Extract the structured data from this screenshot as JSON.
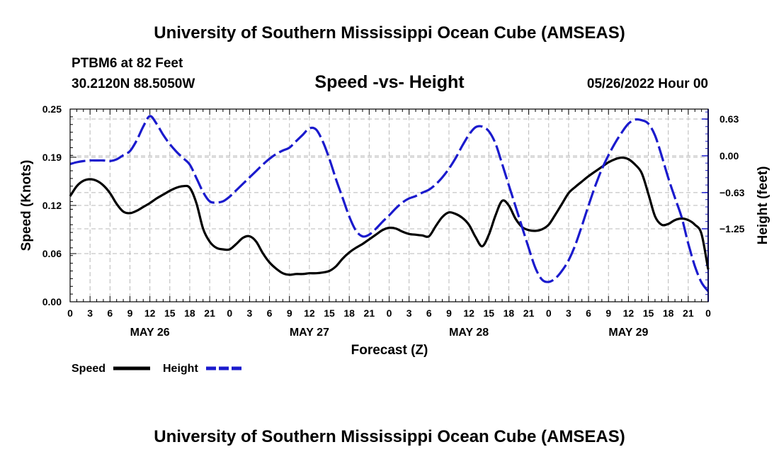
{
  "page": {
    "title_top": "University of Southern Mississippi Ocean Cube (AMSEAS)",
    "title_bottom": "University of Southern Mississippi Ocean Cube (AMSEAS)",
    "station": "PTBM6 at 82 Feet",
    "coords": "30.2120N  88.5050W",
    "chart_title": "Speed -vs- Height",
    "datetime": "05/26/2022 Hour 00"
  },
  "chart_data": {
    "type": "line",
    "title": "Speed -vs- Height",
    "xlabel": "Forecast (Z)",
    "ylabel": "Speed (Knots)",
    "y2label": "Height (feet)",
    "x_range_hours": [
      0,
      96
    ],
    "x_ticks": [
      {
        "h": 0,
        "label": "0"
      },
      {
        "h": 3,
        "label": "3"
      },
      {
        "h": 6,
        "label": "6"
      },
      {
        "h": 9,
        "label": "9"
      },
      {
        "h": 12,
        "label": "12"
      },
      {
        "h": 15,
        "label": "15"
      },
      {
        "h": 18,
        "label": "18"
      },
      {
        "h": 21,
        "label": "21"
      },
      {
        "h": 24,
        "label": "0"
      },
      {
        "h": 27,
        "label": "3"
      },
      {
        "h": 30,
        "label": "6"
      },
      {
        "h": 33,
        "label": "9"
      },
      {
        "h": 36,
        "label": "12"
      },
      {
        "h": 39,
        "label": "15"
      },
      {
        "h": 42,
        "label": "18"
      },
      {
        "h": 45,
        "label": "21"
      },
      {
        "h": 48,
        "label": "0"
      },
      {
        "h": 51,
        "label": "3"
      },
      {
        "h": 54,
        "label": "6"
      },
      {
        "h": 57,
        "label": "9"
      },
      {
        "h": 60,
        "label": "12"
      },
      {
        "h": 63,
        "label": "15"
      },
      {
        "h": 66,
        "label": "18"
      },
      {
        "h": 69,
        "label": "21"
      },
      {
        "h": 72,
        "label": "0"
      },
      {
        "h": 75,
        "label": "3"
      },
      {
        "h": 78,
        "label": "6"
      },
      {
        "h": 81,
        "label": "9"
      },
      {
        "h": 84,
        "label": "12"
      },
      {
        "h": 87,
        "label": "15"
      },
      {
        "h": 90,
        "label": "18"
      },
      {
        "h": 93,
        "label": "21"
      },
      {
        "h": 96,
        "label": "0"
      }
    ],
    "day_labels": [
      {
        "h": 12,
        "label": "MAY 26"
      },
      {
        "h": 36,
        "label": "MAY 27"
      },
      {
        "h": 60,
        "label": "MAY 28"
      },
      {
        "h": 84,
        "label": "MAY 29"
      }
    ],
    "y_left": {
      "min": 0.0,
      "max": 0.25,
      "ticks": [
        {
          "v": 0.0,
          "label": "0.00"
        },
        {
          "v": 0.0625,
          "label": "0.06"
        },
        {
          "v": 0.125,
          "label": "0.12"
        },
        {
          "v": 0.1875,
          "label": "0.19"
        },
        {
          "v": 0.25,
          "label": "0.25"
        }
      ]
    },
    "y_right": {
      "min": -2.5,
      "max": 0.8,
      "ticks": [
        {
          "v": 0.63,
          "label": "0.63"
        },
        {
          "v": 0.0,
          "label": "0.00"
        },
        {
          "v": -0.63,
          "label": "−0.63"
        },
        {
          "v": -1.25,
          "label": "−1.25"
        }
      ]
    },
    "series": [
      {
        "name": "Speed",
        "axis": "left",
        "color": "#000000",
        "style": "solid",
        "points": [
          [
            0,
            0.137
          ],
          [
            1,
            0.15
          ],
          [
            2,
            0.157
          ],
          [
            3,
            0.159
          ],
          [
            4,
            0.157
          ],
          [
            5,
            0.151
          ],
          [
            6,
            0.141
          ],
          [
            7,
            0.127
          ],
          [
            8,
            0.117
          ],
          [
            9,
            0.115
          ],
          [
            10,
            0.118
          ],
          [
            11,
            0.123
          ],
          [
            12,
            0.128
          ],
          [
            13,
            0.134
          ],
          [
            14,
            0.139
          ],
          [
            15,
            0.144
          ],
          [
            16,
            0.148
          ],
          [
            17,
            0.15
          ],
          [
            18,
            0.148
          ],
          [
            19,
            0.128
          ],
          [
            20,
            0.095
          ],
          [
            21,
            0.078
          ],
          [
            22,
            0.07
          ],
          [
            23,
            0.068
          ],
          [
            24,
            0.068
          ],
          [
            25,
            0.075
          ],
          [
            26,
            0.083
          ],
          [
            27,
            0.085
          ],
          [
            28,
            0.078
          ],
          [
            29,
            0.063
          ],
          [
            30,
            0.051
          ],
          [
            31,
            0.043
          ],
          [
            32,
            0.037
          ],
          [
            33,
            0.035
          ],
          [
            34,
            0.036
          ],
          [
            35,
            0.036
          ],
          [
            36,
            0.037
          ],
          [
            37,
            0.037
          ],
          [
            38,
            0.038
          ],
          [
            39,
            0.04
          ],
          [
            40,
            0.046
          ],
          [
            41,
            0.056
          ],
          [
            42,
            0.064
          ],
          [
            43,
            0.07
          ],
          [
            44,
            0.075
          ],
          [
            45,
            0.081
          ],
          [
            46,
            0.087
          ],
          [
            47,
            0.093
          ],
          [
            48,
            0.096
          ],
          [
            49,
            0.095
          ],
          [
            50,
            0.091
          ],
          [
            51,
            0.088
          ],
          [
            52,
            0.087
          ],
          [
            53,
            0.086
          ],
          [
            54,
            0.085
          ],
          [
            55,
            0.098
          ],
          [
            56,
            0.11
          ],
          [
            57,
            0.116
          ],
          [
            58,
            0.114
          ],
          [
            59,
            0.109
          ],
          [
            60,
            0.1
          ],
          [
            61,
            0.084
          ],
          [
            62,
            0.072
          ],
          [
            63,
            0.087
          ],
          [
            64,
            0.112
          ],
          [
            65,
            0.131
          ],
          [
            66,
            0.125
          ],
          [
            67,
            0.108
          ],
          [
            68,
            0.097
          ],
          [
            69,
            0.093
          ],
          [
            70,
            0.092
          ],
          [
            71,
            0.094
          ],
          [
            72,
            0.1
          ],
          [
            73,
            0.113
          ],
          [
            74,
            0.127
          ],
          [
            75,
            0.141
          ],
          [
            76,
            0.149
          ],
          [
            77,
            0.156
          ],
          [
            78,
            0.163
          ],
          [
            79,
            0.169
          ],
          [
            80,
            0.175
          ],
          [
            81,
            0.181
          ],
          [
            82,
            0.185
          ],
          [
            83,
            0.187
          ],
          [
            84,
            0.185
          ],
          [
            85,
            0.178
          ],
          [
            86,
            0.167
          ],
          [
            87,
            0.14
          ],
          [
            88,
            0.111
          ],
          [
            89,
            0.1
          ],
          [
            90,
            0.101
          ],
          [
            91,
            0.106
          ],
          [
            92,
            0.108
          ],
          [
            93,
            0.106
          ],
          [
            94,
            0.1
          ],
          [
            95,
            0.088
          ],
          [
            96,
            0.042
          ]
        ]
      },
      {
        "name": "Height",
        "axis": "right",
        "color": "#1a1acd",
        "style": "dashed",
        "points": [
          [
            0,
            -0.14
          ],
          [
            1,
            -0.11
          ],
          [
            2,
            -0.09
          ],
          [
            3,
            -0.08
          ],
          [
            4,
            -0.08
          ],
          [
            5,
            -0.08
          ],
          [
            6,
            -0.09
          ],
          [
            7,
            -0.06
          ],
          [
            8,
            0.01
          ],
          [
            9,
            0.08
          ],
          [
            10,
            0.26
          ],
          [
            11,
            0.5
          ],
          [
            12,
            0.68
          ],
          [
            13,
            0.55
          ],
          [
            14,
            0.36
          ],
          [
            15,
            0.2
          ],
          [
            16,
            0.07
          ],
          [
            17,
            -0.04
          ],
          [
            18,
            -0.15
          ],
          [
            19,
            -0.38
          ],
          [
            20,
            -0.62
          ],
          [
            21,
            -0.78
          ],
          [
            22,
            -0.8
          ],
          [
            23,
            -0.78
          ],
          [
            24,
            -0.7
          ],
          [
            25,
            -0.59
          ],
          [
            26,
            -0.48
          ],
          [
            27,
            -0.37
          ],
          [
            28,
            -0.26
          ],
          [
            29,
            -0.15
          ],
          [
            30,
            -0.05
          ],
          [
            31,
            0.03
          ],
          [
            32,
            0.09
          ],
          [
            33,
            0.14
          ],
          [
            34,
            0.25
          ],
          [
            35,
            0.36
          ],
          [
            36,
            0.47
          ],
          [
            37,
            0.45
          ],
          [
            38,
            0.25
          ],
          [
            39,
            -0.05
          ],
          [
            40,
            -0.4
          ],
          [
            41,
            -0.72
          ],
          [
            42,
            -1.04
          ],
          [
            43,
            -1.28
          ],
          [
            44,
            -1.38
          ],
          [
            45,
            -1.35
          ],
          [
            46,
            -1.25
          ],
          [
            47,
            -1.13
          ],
          [
            48,
            -1.02
          ],
          [
            49,
            -0.9
          ],
          [
            50,
            -0.8
          ],
          [
            51,
            -0.73
          ],
          [
            52,
            -0.69
          ],
          [
            53,
            -0.63
          ],
          [
            54,
            -0.58
          ],
          [
            55,
            -0.49
          ],
          [
            56,
            -0.37
          ],
          [
            57,
            -0.22
          ],
          [
            58,
            -0.04
          ],
          [
            59,
            0.17
          ],
          [
            60,
            0.36
          ],
          [
            61,
            0.49
          ],
          [
            62,
            0.5
          ],
          [
            63,
            0.42
          ],
          [
            64,
            0.21
          ],
          [
            65,
            -0.14
          ],
          [
            66,
            -0.5
          ],
          [
            67,
            -0.86
          ],
          [
            68,
            -1.22
          ],
          [
            69,
            -1.58
          ],
          [
            70,
            -1.92
          ],
          [
            71,
            -2.12
          ],
          [
            72,
            -2.16
          ],
          [
            73,
            -2.1
          ],
          [
            74,
            -1.97
          ],
          [
            75,
            -1.79
          ],
          [
            76,
            -1.53
          ],
          [
            77,
            -1.2
          ],
          [
            78,
            -0.85
          ],
          [
            79,
            -0.52
          ],
          [
            80,
            -0.23
          ],
          [
            81,
            0.01
          ],
          [
            82,
            0.22
          ],
          [
            83,
            0.4
          ],
          [
            84,
            0.55
          ],
          [
            85,
            0.62
          ],
          [
            86,
            0.61
          ],
          [
            87,
            0.55
          ],
          [
            88,
            0.35
          ],
          [
            89,
            0.0
          ],
          [
            90,
            -0.38
          ],
          [
            91,
            -0.72
          ],
          [
            92,
            -1.05
          ],
          [
            93,
            -1.5
          ],
          [
            94,
            -1.89
          ],
          [
            95,
            -2.17
          ],
          [
            96,
            -2.32
          ]
        ]
      }
    ],
    "legend": [
      {
        "label": "Speed",
        "color": "#000000",
        "style": "solid"
      },
      {
        "label": "Height",
        "color": "#1a1acd",
        "style": "dashed"
      }
    ],
    "grid": true
  }
}
